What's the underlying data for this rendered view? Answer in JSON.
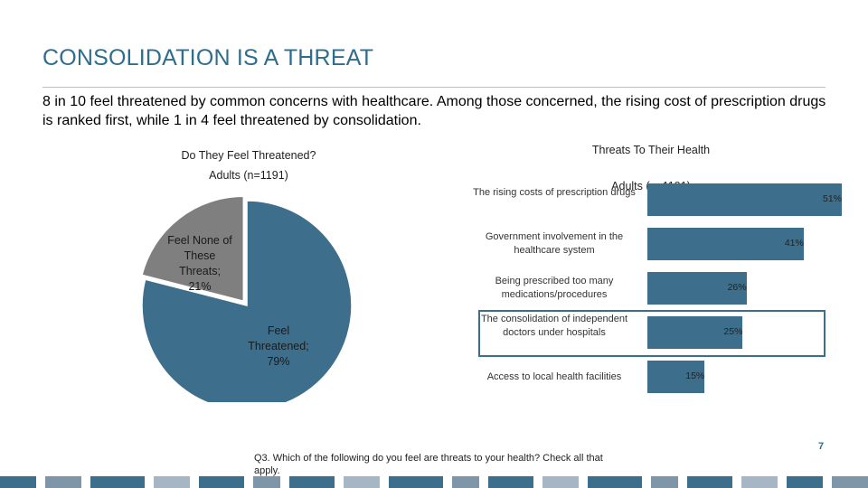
{
  "slide": {
    "title": "CONSOLIDATION IS A THREAT",
    "subtitle": "8 in 10 feel threatened by common concerns with healthcare. Among those concerned, the rising cost of prescription drugs is ranked first, while 1 in 4 feel threatened by consolidation.",
    "footnote": "Q3. Which of the following do you feel are threats to your health? Check all that apply.",
    "page_number": "7"
  },
  "colors": {
    "accent": "#2f6d8f",
    "bar": "#3d6e8b",
    "pie_threatened": "#3d6e8b",
    "pie_none": "#7f7f7f"
  },
  "chart_data": [
    {
      "type": "pie",
      "title": "Do They Feel Threatened?",
      "subtitle": "Adults (n=1191)",
      "slices": [
        {
          "label": "Feel Threatened; 79%",
          "value": 79,
          "color": "#3d6e8b"
        },
        {
          "label": "Feel None of These Threats; 21%",
          "value": 21,
          "color": "#7f7f7f"
        }
      ]
    },
    {
      "type": "bar",
      "orientation": "horizontal",
      "title": "Threats To Their Health",
      "subtitle": "Adults (n=1191)",
      "categories": [
        "The rising costs of prescription drugs",
        "Government involvement in the healthcare system",
        "Being prescribed too many medications/procedures",
        "The consolidation of independent doctors under hospitals",
        "Access to local health facilities"
      ],
      "values": [
        51,
        41,
        26,
        25,
        15
      ],
      "value_labels": [
        "51%",
        "41%",
        "26%",
        "25%",
        "15%"
      ],
      "highlighted_category": "The consolidation of independent doctors under hospitals"
    }
  ]
}
